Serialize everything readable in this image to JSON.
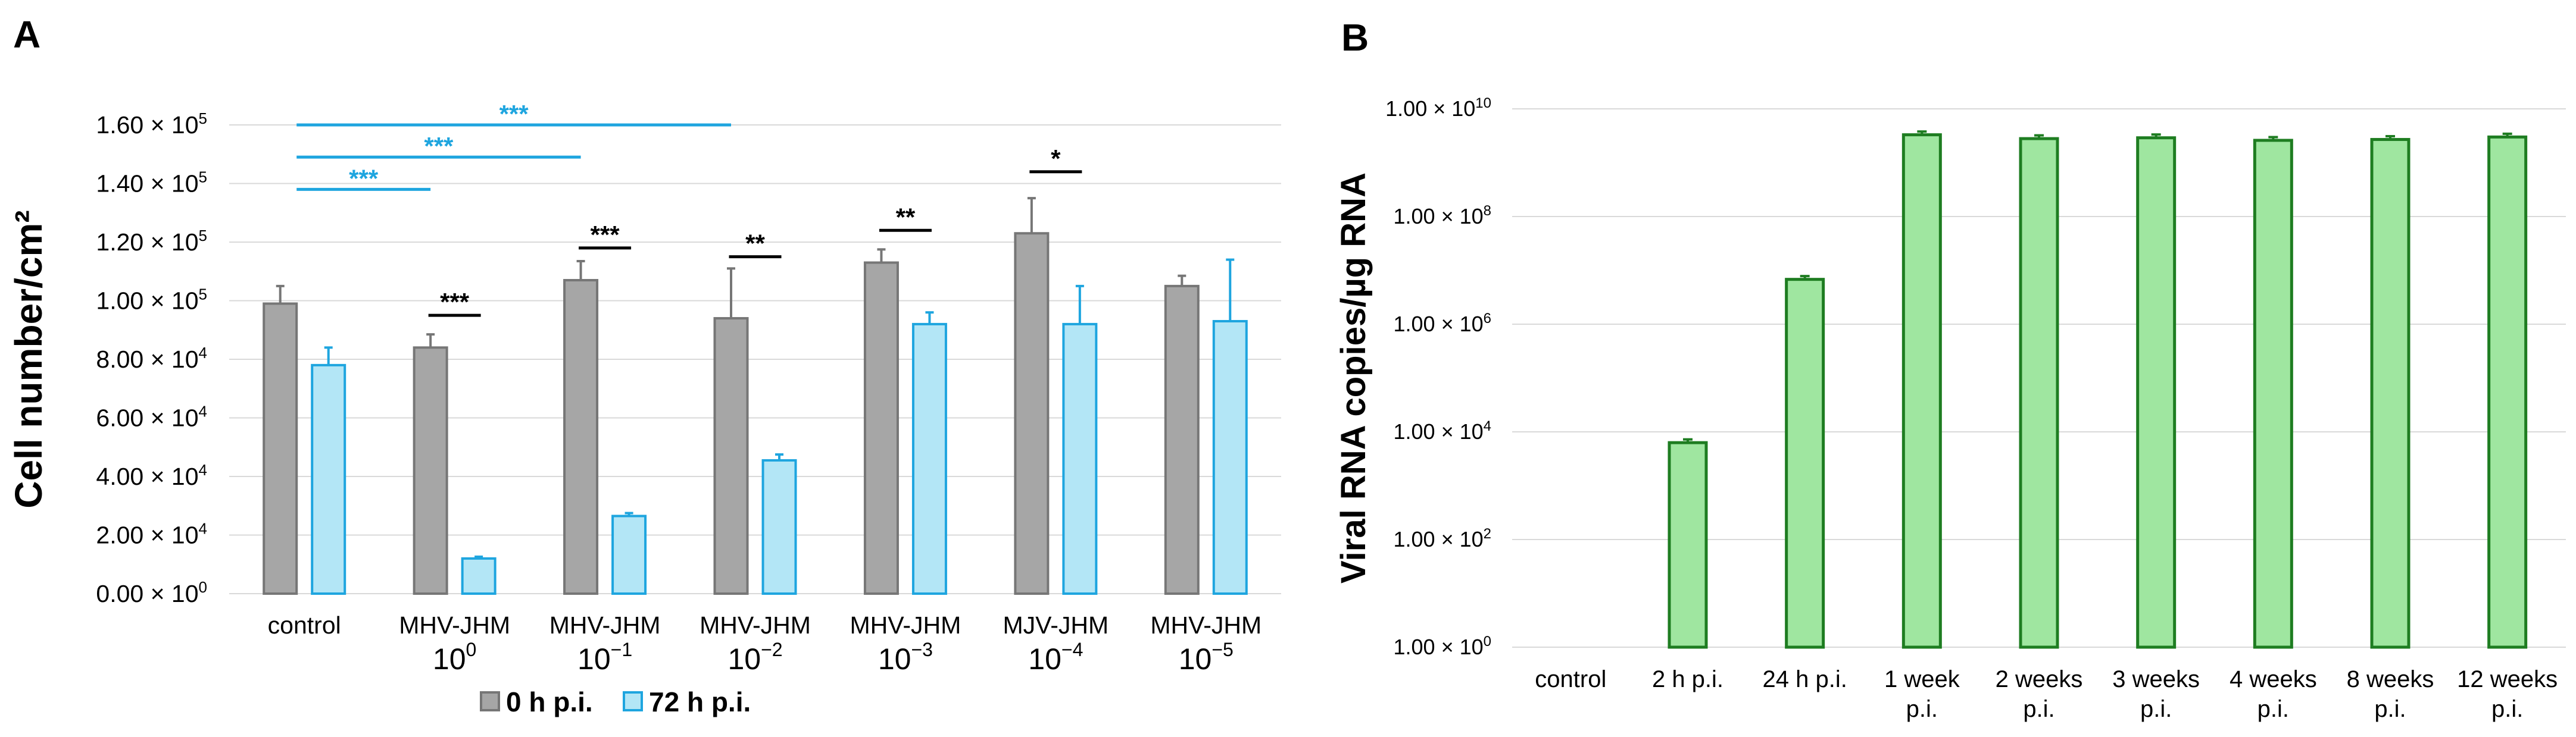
{
  "panel_a_label": "A",
  "panel_b_label": "B",
  "colors": {
    "gray_fill": "#a6a6a6",
    "gray_stroke": "#767676",
    "blue_fill": "#b3e6f6",
    "blue_stroke": "#1ea5df",
    "green_fill": "#9fe6a0",
    "green_stroke": "#1e7d21",
    "grid": "#d9d9d9",
    "sig_blue": "#1ea5df",
    "sig_black": "#000000"
  },
  "chart_data": [
    {
      "type": "bar",
      "id": "A",
      "ylabel": "Cell number/cm²",
      "ylim": [
        0,
        160000
      ],
      "yticks": [
        {
          "value": 0,
          "mant": "0.00",
          "exp": "0"
        },
        {
          "value": 20000,
          "mant": "2.00",
          "exp": "4"
        },
        {
          "value": 40000,
          "mant": "4.00",
          "exp": "4"
        },
        {
          "value": 60000,
          "mant": "6.00",
          "exp": "4"
        },
        {
          "value": 80000,
          "mant": "8.00",
          "exp": "4"
        },
        {
          "value": 100000,
          "mant": "1.00",
          "exp": "5"
        },
        {
          "value": 120000,
          "mant": "1.20",
          "exp": "5"
        },
        {
          "value": 140000,
          "mant": "1.40",
          "exp": "5"
        },
        {
          "value": 160000,
          "mant": "1.60",
          "exp": "5"
        }
      ],
      "tick_prefix": "× 10",
      "categories": [
        {
          "main": "control",
          "base": "",
          "exp": ""
        },
        {
          "main": "MHV-JHM",
          "base": "10",
          "exp": "0"
        },
        {
          "main": "MHV-JHM",
          "base": "10",
          "exp": "−1"
        },
        {
          "main": "MHV-JHM",
          "base": "10",
          "exp": "−2"
        },
        {
          "main": "MHV-JHM",
          "base": "10",
          "exp": "−3"
        },
        {
          "main": "MJV-JHM",
          "base": "10",
          "exp": "−4"
        },
        {
          "main": "MHV-JHM",
          "base": "10",
          "exp": "−5"
        }
      ],
      "series": [
        {
          "name": "0 h p.i.",
          "values": [
            99000,
            84000,
            107000,
            94000,
            113000,
            123000,
            105000
          ],
          "errors": [
            6000,
            4500,
            6500,
            17000,
            4500,
            12000,
            3500
          ]
        },
        {
          "name": "72 h p.i.",
          "values": [
            78000,
            12000,
            26500,
            45500,
            92000,
            92000,
            93000
          ],
          "errors": [
            6000,
            600,
            1000,
            2000,
            4000,
            13000,
            21000
          ]
        }
      ],
      "significance_control": [
        {
          "label": "***",
          "to_category": 1,
          "level": 138000
        },
        {
          "label": "***",
          "to_category": 2,
          "level": 149000
        },
        {
          "label": "***",
          "to_category": 3,
          "level": 160000
        }
      ],
      "significance_pairs": [
        {
          "label": "***",
          "category": 1,
          "level": 95000
        },
        {
          "label": "***",
          "category": 2,
          "level": 118000
        },
        {
          "label": "**",
          "category": 3,
          "level": 115000
        },
        {
          "label": "**",
          "category": 4,
          "level": 124000
        },
        {
          "label": "*",
          "category": 5,
          "level": 144000
        }
      ]
    },
    {
      "type": "bar",
      "id": "B",
      "yscale": "log",
      "ylabel": "Viral RNA copies/µg RNA",
      "ylim": [
        1,
        10000000000
      ],
      "yticks": [
        {
          "value": 1,
          "mant": "1.00",
          "exp": "0"
        },
        {
          "value": 100,
          "mant": "1.00",
          "exp": "2"
        },
        {
          "value": 10000,
          "mant": "1.00",
          "exp": "4"
        },
        {
          "value": 1000000,
          "mant": "1.00",
          "exp": "6"
        },
        {
          "value": 100000000,
          "mant": "1.00",
          "exp": "8"
        },
        {
          "value": 10000000000,
          "mant": "1.00",
          "exp": "10"
        }
      ],
      "tick_prefix": "× 10",
      "categories": [
        {
          "lines": [
            "control"
          ]
        },
        {
          "lines": [
            "2 h p.i."
          ]
        },
        {
          "lines": [
            "24 h p.i."
          ]
        },
        {
          "lines": [
            "1 week",
            "p.i."
          ]
        },
        {
          "lines": [
            "2 weeks",
            "p.i."
          ]
        },
        {
          "lines": [
            "3 weeks",
            "p.i."
          ]
        },
        {
          "lines": [
            "4 weeks",
            "p.i."
          ]
        },
        {
          "lines": [
            "8 weeks",
            "p.i."
          ]
        },
        {
          "lines": [
            "12 weeks",
            "p.i."
          ]
        }
      ],
      "values": [
        null,
        6300,
        6800000,
        3300000000,
        2800000000,
        2900000000,
        2600000000,
        2700000000,
        3000000000
      ],
      "error_factor": 1.15
    }
  ],
  "legend": {
    "items": [
      {
        "label": "0 h p.i.",
        "series": 0
      },
      {
        "label": "72 h p.i.",
        "series": 1
      }
    ]
  }
}
